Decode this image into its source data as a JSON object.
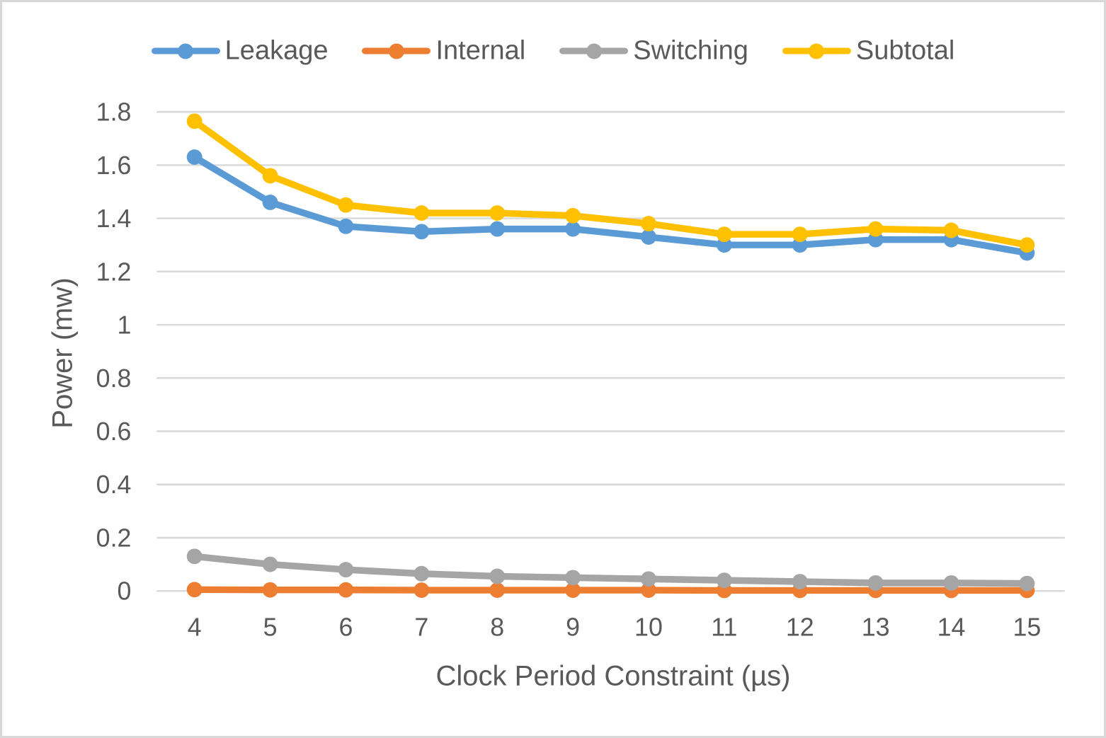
{
  "colors": {
    "background": "#FFFFFF",
    "border": "#D8D8D8",
    "gridline": "#D9D9D9",
    "text": "#595959",
    "leakage": "#5B9BD5",
    "internal": "#ED7D31",
    "switching": "#A5A5A5",
    "subtotal": "#FFC000"
  },
  "chart_data": {
    "type": "line",
    "title": "",
    "xlabel": "Clock Period Constraint (µs)",
    "ylabel": "Power (mw)",
    "x": [
      4,
      5,
      6,
      7,
      8,
      9,
      10,
      11,
      12,
      13,
      14,
      15
    ],
    "x_tick_labels": [
      "4",
      "5",
      "6",
      "7",
      "8",
      "9",
      "10",
      "11",
      "12",
      "13",
      "14",
      "15"
    ],
    "ylim": [
      0,
      1.8
    ],
    "ytick_step": 0.2,
    "y_tick_labels": [
      "0",
      "0.2",
      "0.4",
      "0.6",
      "0.8",
      "1",
      "1.2",
      "1.4",
      "1.6",
      "1.8"
    ],
    "grid": "horizontal-only",
    "legend_position": "top-center",
    "marker_style": "filled-circle",
    "series": [
      {
        "name": "Leakage",
        "color": "#5B9BD5",
        "values": [
          1.63,
          1.46,
          1.37,
          1.35,
          1.36,
          1.36,
          1.33,
          1.3,
          1.3,
          1.32,
          1.32,
          1.27
        ]
      },
      {
        "name": "Internal",
        "color": "#ED7D31",
        "values": [
          0.005,
          0.004,
          0.004,
          0.003,
          0.003,
          0.003,
          0.003,
          0.002,
          0.002,
          0.002,
          0.002,
          0.002
        ]
      },
      {
        "name": "Switching",
        "color": "#A5A5A5",
        "values": [
          0.13,
          0.1,
          0.08,
          0.065,
          0.055,
          0.05,
          0.045,
          0.04,
          0.035,
          0.03,
          0.03,
          0.028
        ]
      },
      {
        "name": "Subtotal",
        "color": "#FFC000",
        "values": [
          1.765,
          1.56,
          1.45,
          1.42,
          1.42,
          1.41,
          1.38,
          1.34,
          1.34,
          1.36,
          1.355,
          1.3
        ]
      }
    ]
  }
}
